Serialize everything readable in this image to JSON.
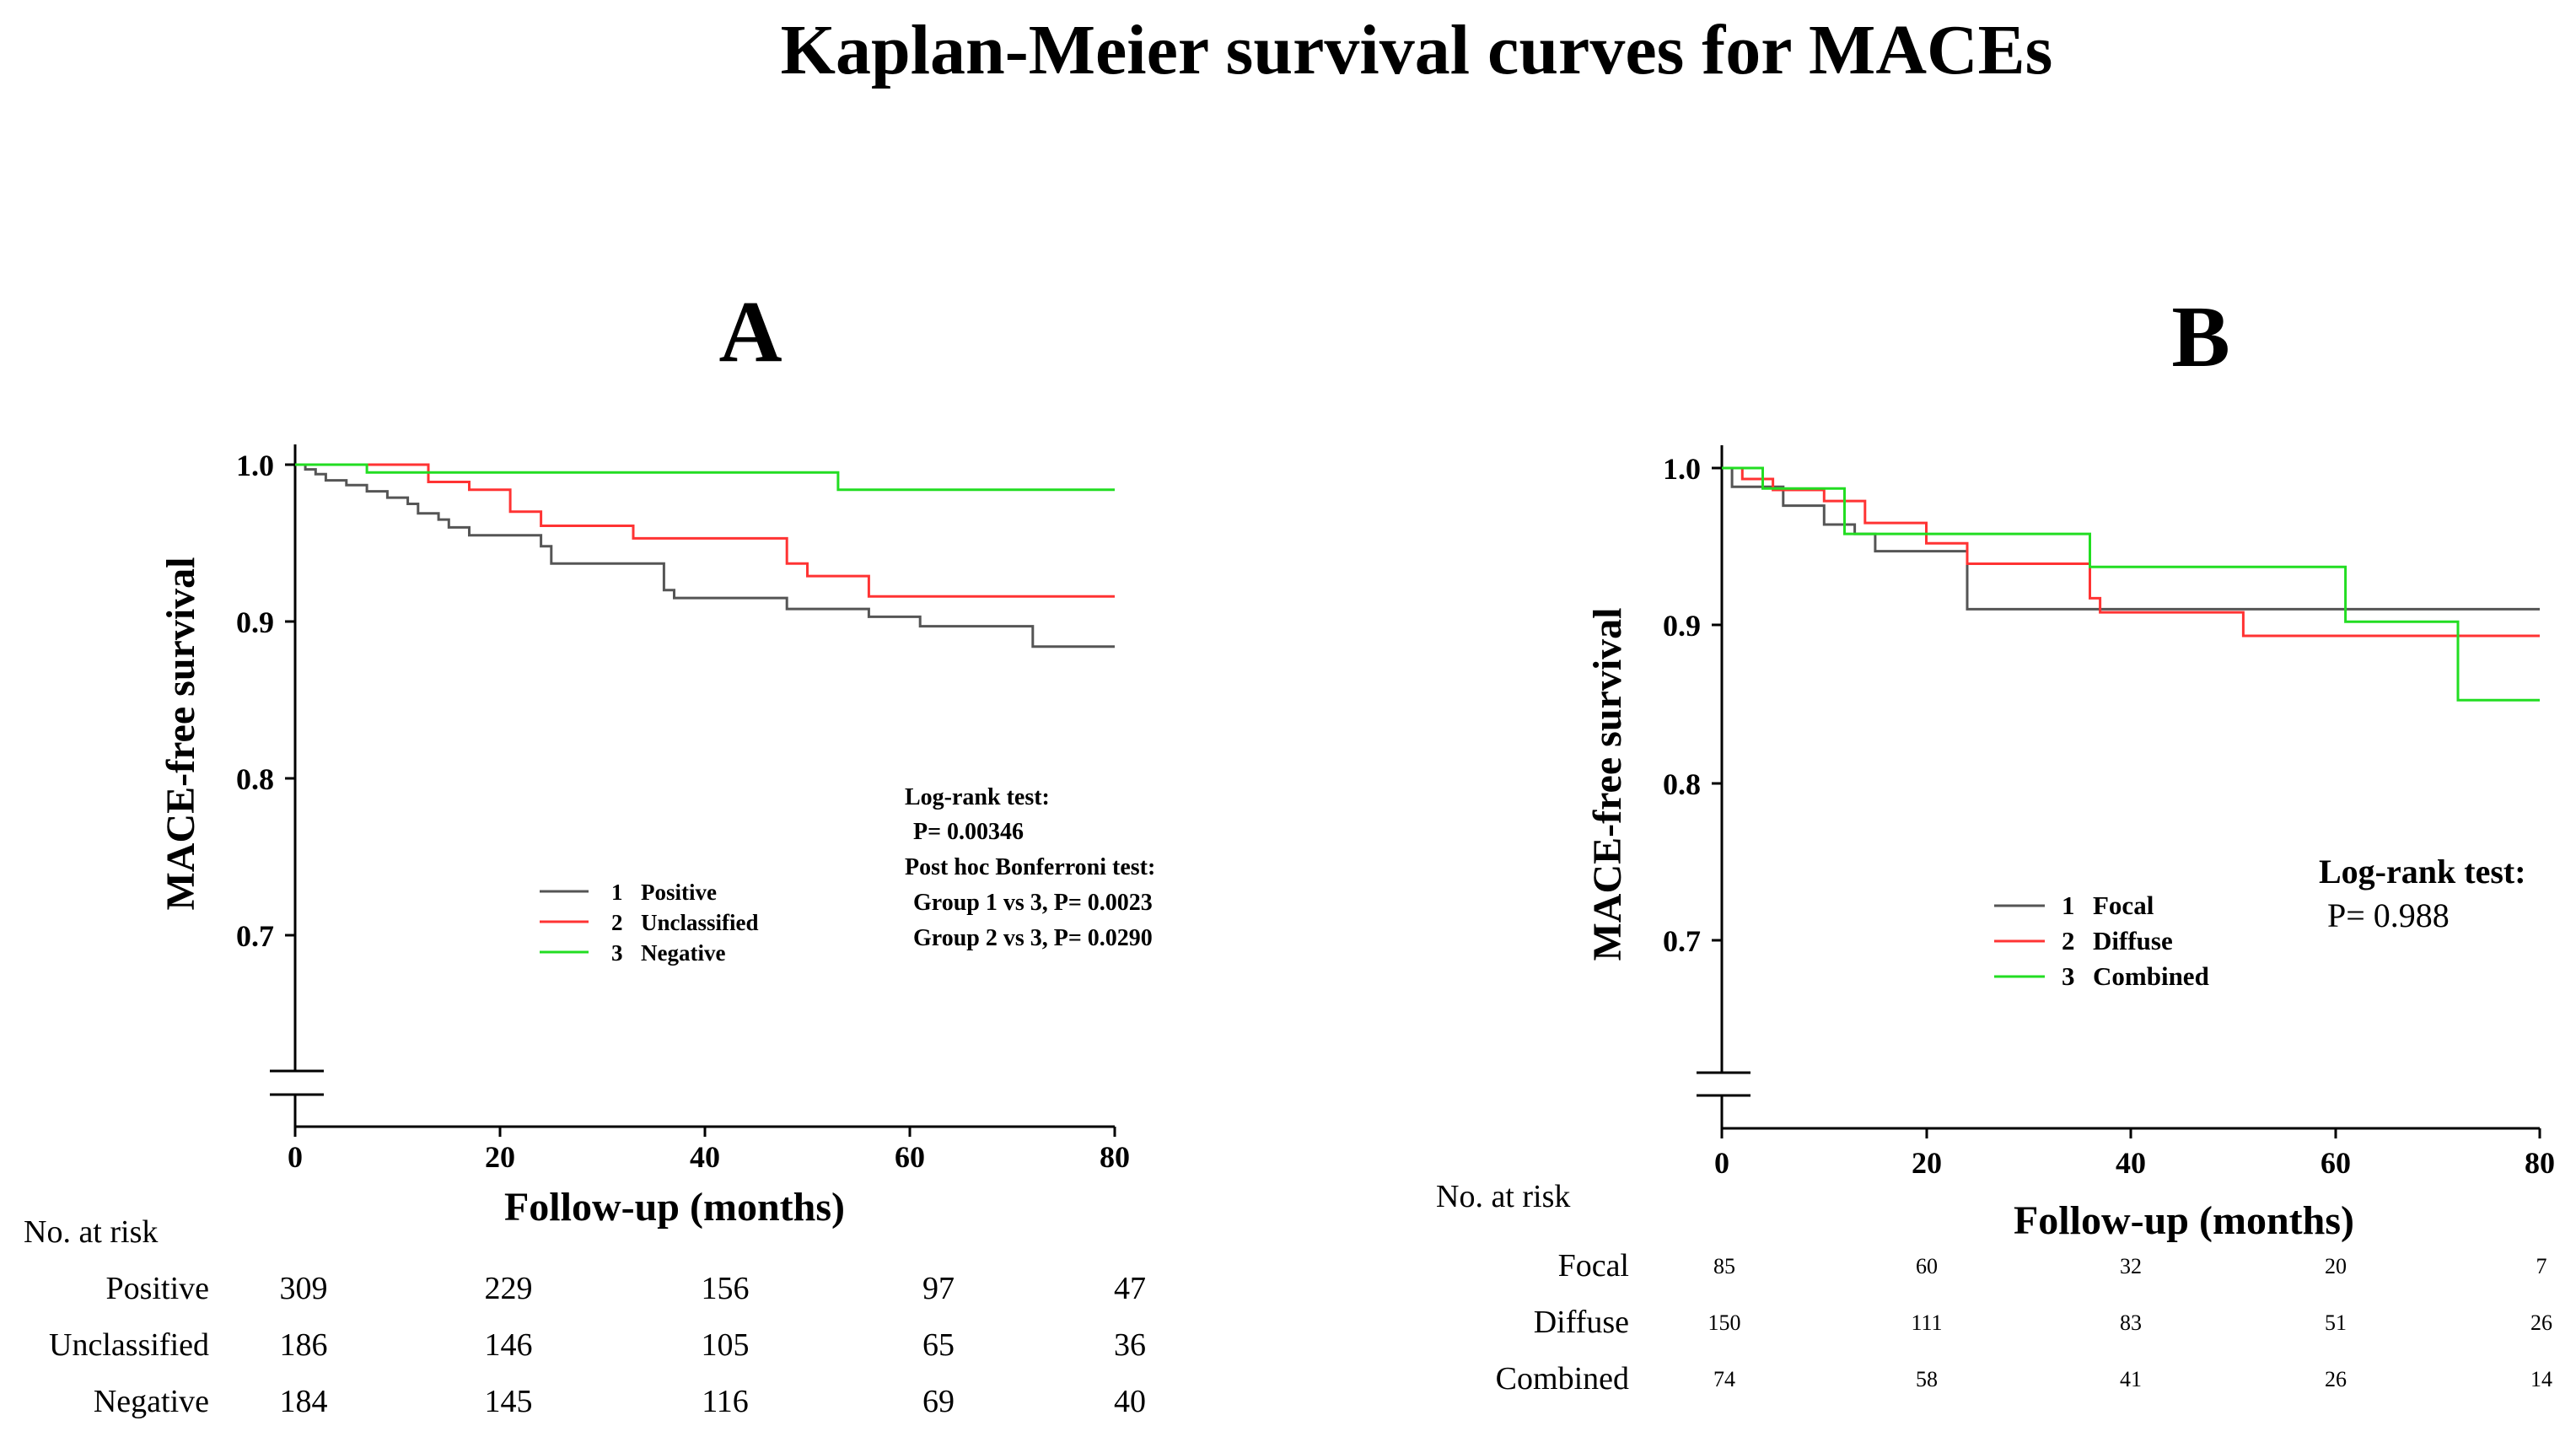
{
  "title": "Kaplan-Meier survival curves for MACEs",
  "colors": {
    "group1": "#555555",
    "group2": "#ff3333",
    "group3": "#22dd22",
    "axis": "#000000"
  },
  "chart_data": [
    {
      "type": "line",
      "panel": "A",
      "ylabel": "MACE-free survival",
      "xlabel": "Follow-up (months)",
      "xlim": [
        0,
        80
      ],
      "ylim": [
        0.6,
        1.0
      ],
      "xticks": [
        "0",
        "20",
        "40",
        "60",
        "80"
      ],
      "yticks": [
        "1.0",
        "0.9",
        "0.8",
        "0.7"
      ],
      "y_axis_break": true,
      "grid": false,
      "legend_position": "center-right",
      "series": [
        {
          "name": "Positive",
          "legend_num": "1",
          "color": "#555555",
          "x": [
            0,
            1,
            2,
            3,
            5,
            7,
            9,
            11,
            12,
            14,
            15,
            17,
            19,
            24,
            25,
            36,
            37,
            40,
            48,
            56,
            61,
            72,
            80
          ],
          "y": [
            1.0,
            0.997,
            0.994,
            0.99,
            0.987,
            0.983,
            0.979,
            0.975,
            0.969,
            0.965,
            0.96,
            0.955,
            0.955,
            0.948,
            0.937,
            0.92,
            0.915,
            0.915,
            0.908,
            0.903,
            0.897,
            0.884,
            0.884
          ]
        },
        {
          "name": "Unclassified",
          "legend_num": "2",
          "color": "#ff3333",
          "x": [
            0,
            13,
            17,
            21,
            24,
            33,
            48,
            50,
            56,
            80
          ],
          "y": [
            1.0,
            0.989,
            0.984,
            0.97,
            0.961,
            0.953,
            0.937,
            0.929,
            0.916,
            0.916
          ]
        },
        {
          "name": "Negative",
          "legend_num": "3",
          "color": "#22dd22",
          "x": [
            0,
            7,
            53,
            80
          ],
          "y": [
            1.0,
            0.995,
            0.984,
            0.984
          ]
        }
      ],
      "stats": {
        "line1": "Log-rank test:",
        "line2": "P= 0.00346",
        "line3": "Post hoc Bonferroni test:",
        "line4": "Group 1 vs 3, P= 0.0023",
        "line5": "Group 2 vs 3, P= 0.0290"
      },
      "risk_table": {
        "title": "No. at risk",
        "rows": [
          {
            "label": "Positive",
            "values": [
              "309",
              "229",
              "156",
              "97",
              "47"
            ]
          },
          {
            "label": "Unclassified",
            "values": [
              "186",
              "146",
              "105",
              "65",
              "36"
            ]
          },
          {
            "label": "Negative",
            "values": [
              "184",
              "145",
              "116",
              "69",
              "40"
            ]
          }
        ]
      }
    },
    {
      "type": "line",
      "panel": "B",
      "ylabel": "MACE-free survival",
      "xlabel": "Follow-up (months)",
      "xlim": [
        0,
        80
      ],
      "ylim": [
        0.6,
        1.0
      ],
      "xticks": [
        "0",
        "20",
        "40",
        "60",
        "80"
      ],
      "yticks": [
        "1.0",
        "0.9",
        "0.8",
        "0.7"
      ],
      "y_axis_break": true,
      "grid": false,
      "legend_position": "center-right",
      "series": [
        {
          "name": "Focal",
          "legend_num": "1",
          "color": "#555555",
          "x": [
            0,
            1,
            6,
            10,
            13,
            15,
            24,
            80
          ],
          "y": [
            1.0,
            0.988,
            0.976,
            0.964,
            0.958,
            0.947,
            0.91,
            0.91
          ]
        },
        {
          "name": "Diffuse",
          "legend_num": "2",
          "color": "#ff3333",
          "x": [
            0,
            2,
            5,
            10,
            14,
            20,
            24,
            36,
            37,
            51,
            80
          ],
          "y": [
            1.0,
            0.993,
            0.986,
            0.979,
            0.965,
            0.952,
            0.939,
            0.917,
            0.908,
            0.893,
            0.893
          ]
        },
        {
          "name": "Combined",
          "legend_num": "3",
          "color": "#22dd22",
          "x": [
            0,
            4,
            12,
            36,
            61,
            72,
            80
          ],
          "y": [
            1.0,
            0.987,
            0.958,
            0.937,
            0.902,
            0.852,
            0.852
          ]
        }
      ],
      "stats": {
        "line1": "Log-rank test:",
        "line2": "P= 0.988"
      },
      "risk_table": {
        "title": "No. at risk",
        "rows": [
          {
            "label": "Focal",
            "values": [
              "85",
              "60",
              "32",
              "20",
              "7"
            ]
          },
          {
            "label": "Diffuse",
            "values": [
              "150",
              "111",
              "83",
              "51",
              "26"
            ]
          },
          {
            "label": "Combined",
            "values": [
              "74",
              "58",
              "41",
              "26",
              "14"
            ]
          }
        ]
      }
    }
  ],
  "panels": {
    "a": {
      "letter": "A"
    },
    "b": {
      "letter": "B"
    }
  }
}
